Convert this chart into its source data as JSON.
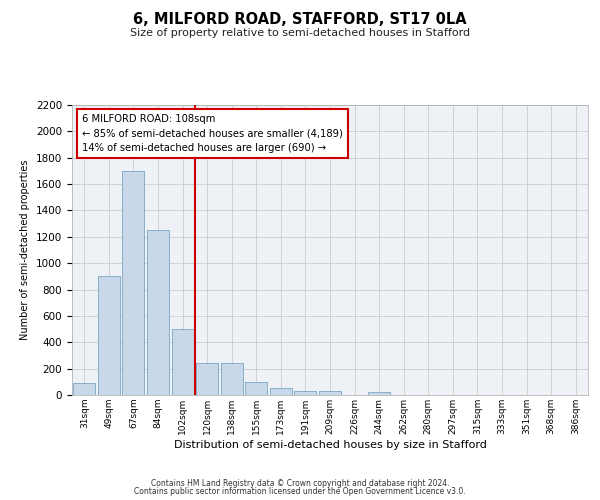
{
  "title": "6, MILFORD ROAD, STAFFORD, ST17 0LA",
  "subtitle": "Size of property relative to semi-detached houses in Stafford",
  "xlabel": "Distribution of semi-detached houses by size in Stafford",
  "ylabel": "Number of semi-detached properties",
  "categories": [
    "31sqm",
    "49sqm",
    "67sqm",
    "84sqm",
    "102sqm",
    "120sqm",
    "138sqm",
    "155sqm",
    "173sqm",
    "191sqm",
    "209sqm",
    "226sqm",
    "244sqm",
    "262sqm",
    "280sqm",
    "297sqm",
    "315sqm",
    "333sqm",
    "351sqm",
    "368sqm",
    "386sqm"
  ],
  "values": [
    90,
    900,
    1700,
    1250,
    500,
    240,
    240,
    100,
    50,
    30,
    30,
    0,
    20,
    0,
    0,
    0,
    0,
    0,
    0,
    0,
    0
  ],
  "bar_color": "#c8d8e8",
  "bar_edge_color": "#6699bb",
  "vline_color": "#cc0000",
  "annotation_text": "6 MILFORD ROAD: 108sqm\n← 85% of semi-detached houses are smaller (4,189)\n14% of semi-detached houses are larger (690) →",
  "annotation_box_color": "#ffffff",
  "annotation_box_edge": "#cc0000",
  "ylim": [
    0,
    2200
  ],
  "yticks": [
    0,
    200,
    400,
    600,
    800,
    1000,
    1200,
    1400,
    1600,
    1800,
    2000,
    2200
  ],
  "footer_line1": "Contains HM Land Registry data © Crown copyright and database right 2024.",
  "footer_line2": "Contains public sector information licensed under the Open Government Licence v3.0.",
  "grid_color": "#cccccc",
  "background_color": "#eef2f7"
}
